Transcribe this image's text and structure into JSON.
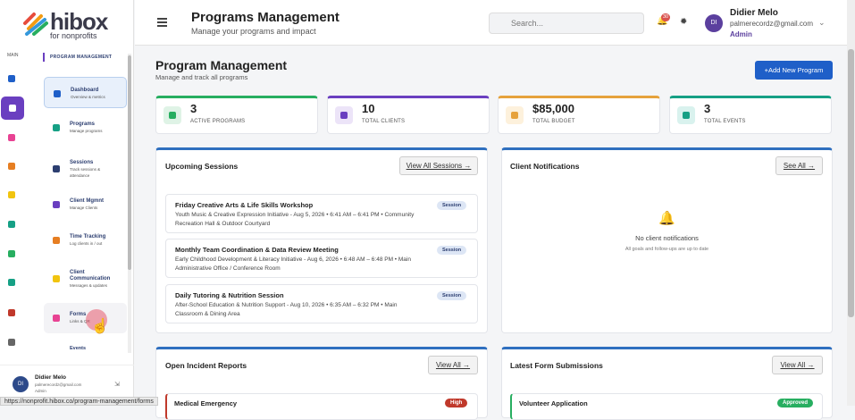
{
  "logo": {
    "name": "hibox",
    "tagline": "for nonprofits"
  },
  "header": {
    "title": "Programs Management",
    "subtitle": "Manage your programs and impact",
    "search_placeholder": "Search...",
    "badge": "30",
    "user": {
      "initials": "DI",
      "name": "Didier Melo",
      "email": "palmerecordz@gmail.com",
      "role": "Admin"
    }
  },
  "rail": {
    "label": "MAIN"
  },
  "sidebar": {
    "title": "PROGRAM MANAGEMENT",
    "items": [
      {
        "label": "Dashboard",
        "sub": "Overview & metrics"
      },
      {
        "label": "Programs",
        "sub": "Manage programs"
      },
      {
        "label": "Sessions",
        "sub": "Track sessions & attendance"
      },
      {
        "label": "Client Mgmnt",
        "sub": "Manage Clients"
      },
      {
        "label": "Time Tracking",
        "sub": "Log clients in / out"
      },
      {
        "label": "Client Communication",
        "sub": "Messages & updates"
      },
      {
        "label": "Forms",
        "sub": "Links & QR"
      },
      {
        "label": "Events"
      }
    ],
    "user": {
      "initials": "DI",
      "name": "Didier Melo",
      "email": "palmerecordz@gmail.com",
      "role": "Admin"
    }
  },
  "main": {
    "title": "Program Management",
    "subtitle": "Manage and track all programs",
    "add_button": "+Add New Program",
    "stats": [
      {
        "value": "3",
        "label": "ACTIVE PROGRAMS"
      },
      {
        "value": "10",
        "label": "TOTAL CLIENTS"
      },
      {
        "value": "$85,000",
        "label": "TOTAL BUDGET"
      },
      {
        "value": "3",
        "label": "TOTAL EVENTS"
      }
    ],
    "sessions": {
      "title": "Upcoming Sessions",
      "button": "View All Sessions →",
      "items": [
        {
          "title": "Friday Creative Arts & Life Skills Workshop",
          "detail": "Youth Music & Creative Expression Initiative - Aug 5, 2026 • 6:41 AM – 6:41 PM • Community Recreation Hall & Outdoor Courtyard",
          "badge": "Session"
        },
        {
          "title": "Monthly Team Coordination & Data Review Meeting",
          "detail": "Early Childhood Development & Literacy Initiative - Aug 6, 2026 • 6:48 AM – 6:48 PM • Main Administrative Office / Conference Room",
          "badge": "Session"
        },
        {
          "title": "Daily Tutoring & Nutrition Session",
          "detail": "After-School Education & Nutrition Support - Aug 10, 2026 • 6:35 AM – 6:32 PM • Main Classroom & Dining Area",
          "badge": "Session"
        }
      ]
    },
    "notifications": {
      "title": "Client Notifications",
      "button": "See All →",
      "empty_title": "No client notifications",
      "empty_text": "All goals and follow-ups are up to date"
    },
    "incidents": {
      "title": "Open Incident Reports",
      "button": "View All →",
      "item": "Medical Emergency",
      "badge": "High"
    },
    "forms": {
      "title": "Latest Form Submissions",
      "button": "View All →",
      "item": "Volunteer Application",
      "badge": "Approved"
    }
  },
  "status_url": "https://nonprofit.hibox.co/program-management/forms"
}
